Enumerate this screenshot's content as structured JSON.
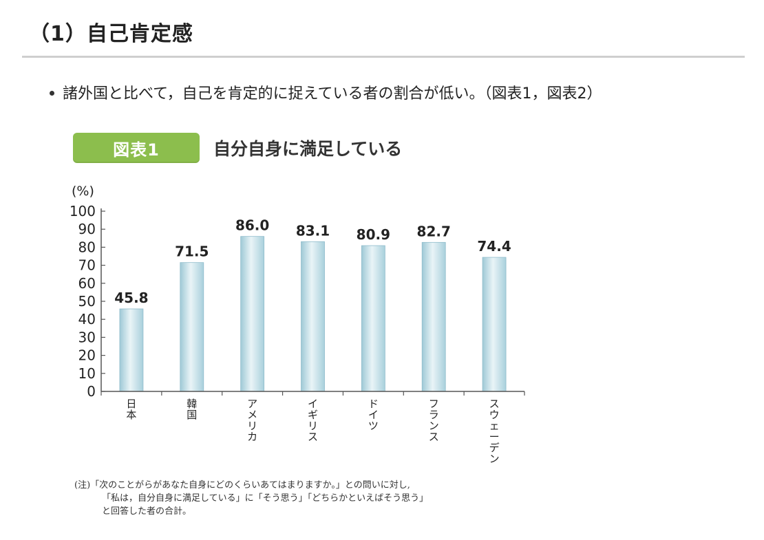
{
  "section": {
    "title": "（1）自己肯定感"
  },
  "bullet": {
    "text": "諸外国と比べて，自己を肯定的に捉えている者の割合が低い。（図表1，図表2）"
  },
  "figure": {
    "badge": "図表1",
    "title": "自分自身に満足している"
  },
  "chart_data": {
    "type": "bar",
    "title": "自分自身に満足している",
    "ylabel": "(%)",
    "xlabel": "",
    "ylim": [
      0,
      100
    ],
    "yticks": [
      0,
      10,
      20,
      30,
      40,
      50,
      60,
      70,
      80,
      90,
      100
    ],
    "categories": [
      "日本",
      "韓国",
      "アメリカ",
      "イギリス",
      "ドイツ",
      "フランス",
      "スウェーデン"
    ],
    "values": [
      45.8,
      71.5,
      86.0,
      83.1,
      80.9,
      82.7,
      74.4
    ],
    "value_labels": [
      "45.8",
      "71.5",
      "86.0",
      "83.1",
      "80.9",
      "82.7",
      "74.4"
    ],
    "grid": false,
    "bar_color": "#bcdde6"
  },
  "note": {
    "line1": "(注)「次のことがらがあなた自身にどのくらいあてはまりますか。」との問いに対し,",
    "line2": "「私は，自分自身に満足している」に「そう思う」「どちらかといえばそう思う」",
    "line3": "と回答した者の合計。"
  }
}
